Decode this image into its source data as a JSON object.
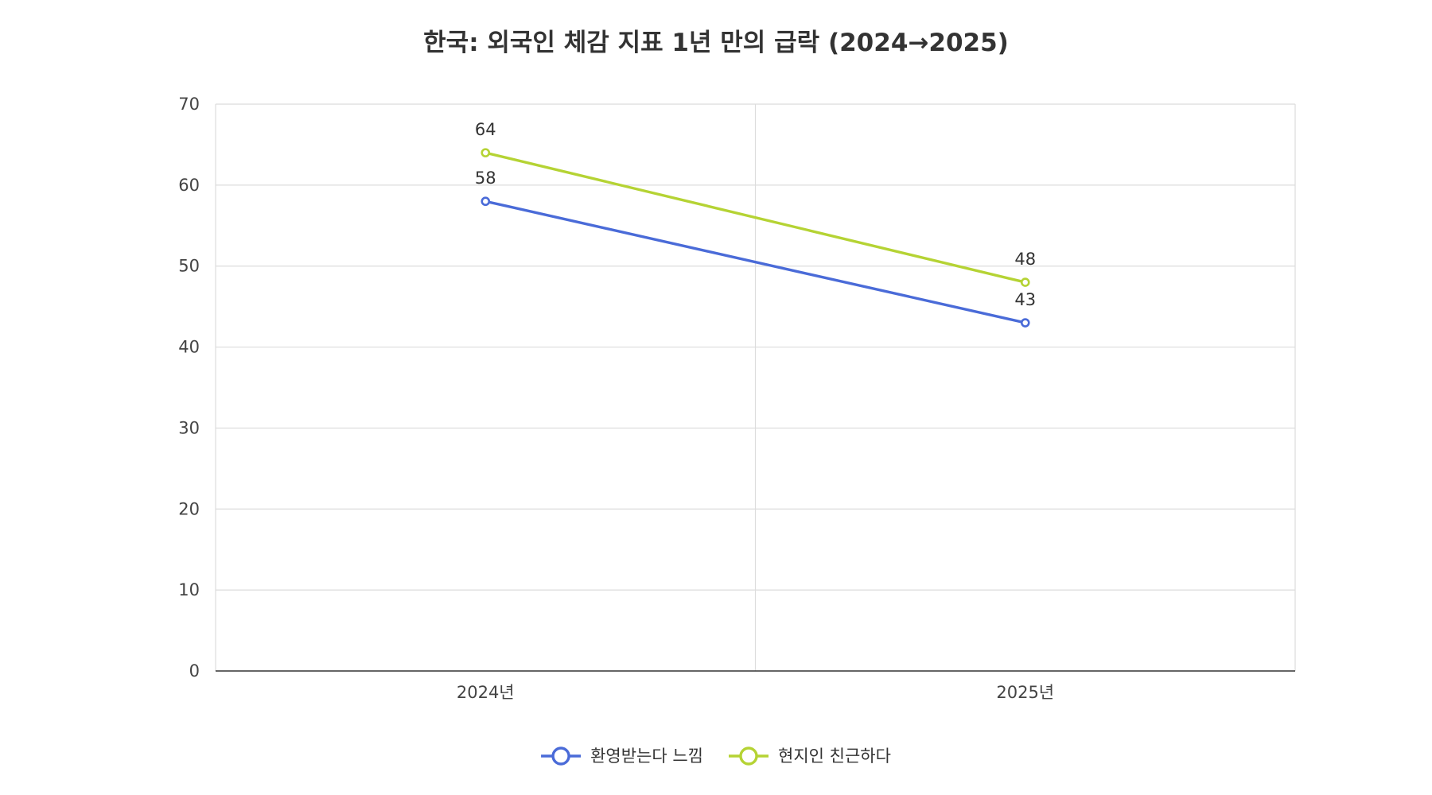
{
  "chart_data": {
    "type": "line",
    "title": "한국: 외국인 체감 지표 1년 만의 급락 (2024→2025)",
    "xlabel": "",
    "ylabel": "",
    "categories": [
      "2024년",
      "2025년"
    ],
    "ylim": [
      0,
      70
    ],
    "yticks": [
      0,
      10,
      20,
      30,
      40,
      50,
      60,
      70
    ],
    "grid": true,
    "legend_position": "bottom",
    "data_labels": true,
    "series": [
      {
        "name": "환영받는다 느낌",
        "values": [
          58,
          43
        ],
        "color": "#4A6BD8"
      },
      {
        "name": "현지인 친근하다",
        "values": [
          64,
          48
        ],
        "color": "#B5D334"
      }
    ]
  }
}
